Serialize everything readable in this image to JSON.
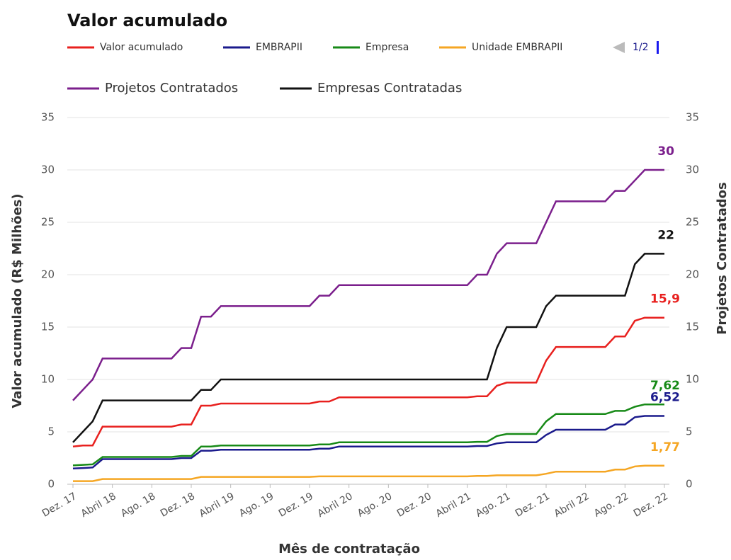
{
  "chart_data": {
    "type": "line",
    "title": "Valor acumulado",
    "legend_page": "1/2",
    "x_label": "Mês de contratação",
    "y_label": "Valor acumulado (R$ Milhões)",
    "y2_label": "Projetos Contratados",
    "categories": [
      "Dez. 17",
      null,
      null,
      null,
      "Abril 18",
      null,
      null,
      null,
      "Ago. 18",
      null,
      null,
      null,
      "Dez. 18",
      null,
      null,
      null,
      "Abril 19",
      null,
      null,
      null,
      "Ago. 19",
      null,
      null,
      null,
      "Dez. 19",
      null,
      null,
      null,
      "Abril 20",
      null,
      null,
      null,
      "Ago. 20",
      null,
      null,
      null,
      "Dez. 20",
      null,
      null,
      null,
      "Abril 21",
      null,
      null,
      null,
      "Ago. 21",
      null,
      null,
      null,
      "Dez. 21",
      null,
      null,
      null,
      "Abril 22",
      null,
      null,
      null,
      "Ago. 22",
      null,
      null,
      null,
      "Dez. 22"
    ],
    "ylim": [
      0,
      35
    ],
    "yticks": [
      0,
      5,
      10,
      15,
      20,
      25,
      30,
      35
    ],
    "y2lim": [
      0,
      35
    ],
    "y2ticks": [
      0,
      5,
      10,
      15,
      20,
      25,
      30,
      35
    ],
    "grid": true,
    "series": [
      {
        "name": "Valor acumulado",
        "color": "#e8201e",
        "values": [
          3.6,
          3.7,
          3.7,
          5.5,
          5.5,
          5.5,
          5.5,
          5.5,
          5.5,
          5.5,
          5.5,
          5.7,
          5.7,
          7.5,
          7.5,
          7.7,
          7.7,
          7.7,
          7.7,
          7.7,
          7.7,
          7.7,
          7.7,
          7.7,
          7.7,
          7.9,
          7.9,
          8.3,
          8.3,
          8.3,
          8.3,
          8.3,
          8.3,
          8.3,
          8.3,
          8.3,
          8.3,
          8.3,
          8.3,
          8.3,
          8.3,
          8.4,
          8.4,
          9.4,
          9.7,
          9.7,
          9.7,
          9.7,
          11.8,
          13.1,
          13.1,
          13.1,
          13.1,
          13.1,
          13.1,
          14.1,
          14.1,
          15.6,
          15.9,
          15.9,
          15.9
        ],
        "value_labels": [
          null,
          null,
          null,
          null,
          null,
          null,
          null,
          null,
          null,
          null,
          null,
          null,
          null,
          null,
          null,
          null,
          null,
          null,
          null,
          null,
          null,
          null,
          null,
          null,
          null,
          null,
          null,
          null,
          null,
          null,
          null,
          null,
          null,
          null,
          null,
          null,
          null,
          null,
          null,
          null,
          null,
          null,
          null,
          null,
          null,
          null,
          null,
          null,
          null,
          null,
          null,
          null,
          null,
          null,
          null,
          null,
          null,
          null,
          null,
          null,
          "15,9"
        ]
      },
      {
        "name": "EMBRAPII",
        "color": "#1a1a8c",
        "values": [
          1.5,
          1.55,
          1.6,
          2.4,
          2.4,
          2.4,
          2.4,
          2.4,
          2.4,
          2.4,
          2.4,
          2.5,
          2.5,
          3.2,
          3.2,
          3.3,
          3.3,
          3.3,
          3.3,
          3.3,
          3.3,
          3.3,
          3.3,
          3.3,
          3.3,
          3.4,
          3.4,
          3.6,
          3.6,
          3.6,
          3.6,
          3.6,
          3.6,
          3.6,
          3.6,
          3.6,
          3.6,
          3.6,
          3.6,
          3.6,
          3.6,
          3.65,
          3.65,
          3.9,
          4.0,
          4.0,
          4.0,
          4.0,
          4.7,
          5.2,
          5.2,
          5.2,
          5.2,
          5.2,
          5.2,
          5.7,
          5.7,
          6.4,
          6.52,
          6.52,
          6.52
        ],
        "value_labels": [
          null,
          null,
          null,
          null,
          null,
          null,
          null,
          null,
          null,
          null,
          null,
          null,
          null,
          null,
          null,
          null,
          null,
          null,
          null,
          null,
          null,
          null,
          null,
          null,
          null,
          null,
          null,
          null,
          null,
          null,
          null,
          null,
          null,
          null,
          null,
          null,
          null,
          null,
          null,
          null,
          null,
          null,
          null,
          null,
          null,
          null,
          null,
          null,
          null,
          null,
          null,
          null,
          null,
          null,
          null,
          null,
          null,
          null,
          null,
          null,
          "6,52"
        ]
      },
      {
        "name": "Empresa",
        "color": "#178a17",
        "values": [
          1.8,
          1.85,
          1.9,
          2.6,
          2.6,
          2.6,
          2.6,
          2.6,
          2.6,
          2.6,
          2.6,
          2.7,
          2.7,
          3.6,
          3.6,
          3.7,
          3.7,
          3.7,
          3.7,
          3.7,
          3.7,
          3.7,
          3.7,
          3.7,
          3.7,
          3.8,
          3.8,
          4.0,
          4.0,
          4.0,
          4.0,
          4.0,
          4.0,
          4.0,
          4.0,
          4.0,
          4.0,
          4.0,
          4.0,
          4.0,
          4.0,
          4.05,
          4.05,
          4.6,
          4.8,
          4.8,
          4.8,
          4.8,
          6,
          6.7,
          6.7,
          6.7,
          6.7,
          6.7,
          6.7,
          7,
          7,
          7.4,
          7.62,
          7.62,
          7.62
        ],
        "value_labels": [
          null,
          null,
          null,
          null,
          null,
          null,
          null,
          null,
          null,
          null,
          null,
          null,
          null,
          null,
          null,
          null,
          null,
          null,
          null,
          null,
          null,
          null,
          null,
          null,
          null,
          null,
          null,
          null,
          null,
          null,
          null,
          null,
          null,
          null,
          null,
          null,
          null,
          null,
          null,
          null,
          null,
          null,
          null,
          null,
          null,
          null,
          null,
          null,
          null,
          null,
          null,
          null,
          null,
          null,
          null,
          null,
          null,
          null,
          null,
          null,
          "7,62"
        ]
      },
      {
        "name": "Unidade EMBRAPII",
        "color": "#f5a623",
        "values": [
          0.3,
          0.3,
          0.3,
          0.5,
          0.5,
          0.5,
          0.5,
          0.5,
          0.5,
          0.5,
          0.5,
          0.5,
          0.5,
          0.7,
          0.7,
          0.7,
          0.7,
          0.7,
          0.7,
          0.7,
          0.7,
          0.7,
          0.7,
          0.7,
          0.7,
          0.75,
          0.75,
          0.75,
          0.75,
          0.75,
          0.75,
          0.75,
          0.75,
          0.75,
          0.75,
          0.75,
          0.75,
          0.75,
          0.75,
          0.75,
          0.75,
          0.8,
          0.8,
          0.85,
          0.85,
          0.85,
          0.85,
          0.85,
          1,
          1.2,
          1.2,
          1.2,
          1.2,
          1.2,
          1.2,
          1.4,
          1.4,
          1.7,
          1.77,
          1.77,
          1.77
        ],
        "value_labels": [
          null,
          null,
          null,
          null,
          null,
          null,
          null,
          null,
          null,
          null,
          null,
          null,
          null,
          null,
          null,
          null,
          null,
          null,
          null,
          null,
          null,
          null,
          null,
          null,
          null,
          null,
          null,
          null,
          null,
          null,
          null,
          null,
          null,
          null,
          null,
          null,
          null,
          null,
          null,
          null,
          null,
          null,
          null,
          null,
          null,
          null,
          null,
          null,
          null,
          null,
          null,
          null,
          null,
          null,
          null,
          null,
          null,
          null,
          null,
          null,
          "1,77"
        ]
      },
      {
        "name": "Projetos Contratados",
        "color": "#7b1f8c",
        "axis": "y2",
        "values": [
          8,
          9,
          10,
          12,
          12,
          12,
          12,
          12,
          12,
          12,
          12,
          13,
          13,
          16,
          16,
          17,
          17,
          17,
          17,
          17,
          17,
          17,
          17,
          17,
          17,
          18,
          18,
          19,
          19,
          19,
          19,
          19,
          19,
          19,
          19,
          19,
          19,
          19,
          19,
          19,
          19,
          20,
          20,
          22,
          23,
          23,
          23,
          23,
          25,
          27,
          27,
          27,
          27,
          27,
          27,
          28,
          28,
          29,
          30,
          30,
          30
        ]
      },
      {
        "name": "Empresas Contratadas",
        "color": "#111111",
        "axis": "y2",
        "values": [
          4,
          5,
          6,
          8,
          8,
          8,
          8,
          8,
          8,
          8,
          8,
          8,
          8,
          9,
          9,
          10,
          10,
          10,
          10,
          10,
          10,
          10,
          10,
          10,
          10,
          10,
          10,
          10,
          10,
          10,
          10,
          10,
          10,
          10,
          10,
          10,
          10,
          10,
          10,
          10,
          10,
          10,
          10,
          13,
          15,
          15,
          15,
          15,
          17,
          18,
          18,
          18,
          18,
          18,
          18,
          18,
          18,
          21,
          22,
          22,
          22
        ]
      }
    ]
  }
}
